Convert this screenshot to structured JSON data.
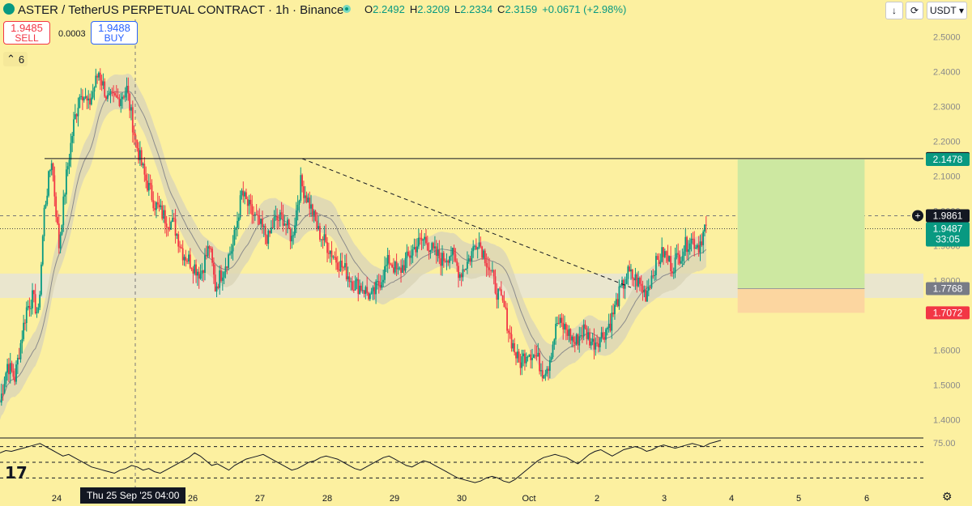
{
  "header": {
    "title": "ASTER / TetherUS PERPETUAL CONTRACT · 1h · Binance",
    "ohlc": [
      {
        "label": "O",
        "value": "2.2492"
      },
      {
        "label": "H",
        "value": "2.3209"
      },
      {
        "label": "L",
        "value": "2.2334"
      },
      {
        "label": "C",
        "value": "2.3159"
      }
    ],
    "change": "+0.0671 (+2.98%)",
    "currency": "USDT",
    "down_arrow": "↓",
    "refresh": "⟳"
  },
  "trade": {
    "sell_price": "1.9485",
    "sell_label": "SELL",
    "buy_price": "1.9488",
    "buy_label": "BUY",
    "spread": "0.0003"
  },
  "indicators_count": "6",
  "crosshair_time": "Thu 25 Sep '25   04:00",
  "colors": {
    "background": "#fcf0a0",
    "up": "#089981",
    "down": "#f23645",
    "target_zone": "#cde8a1",
    "stop_zone": "#fcd6a0",
    "band": "#d9d5b8",
    "sr_zone": "#e6e4d6"
  },
  "icons": {
    "logo": "aster-logo-icon",
    "live": "live-dot-icon",
    "eye": "eye-icon",
    "settings": "gear-icon",
    "tradingview": "tradingview-logo-icon"
  },
  "chart_data": [
    {
      "type": "candlestick",
      "title": "ASTER / TetherUS PERPETUAL CONTRACT · 1h · Binance",
      "x_labels": [
        "24",
        "25",
        "26",
        "27",
        "28",
        "29",
        "30",
        "Oct",
        "2",
        "3",
        "4",
        "5",
        "6"
      ],
      "ylim": [
        1.35,
        2.55
      ],
      "y_ticks": [
        "2.5000",
        "2.4000",
        "2.3000",
        "2.2000",
        "2.1000",
        "2.0000",
        "1.9000",
        "1.8000",
        "1.7000",
        "1.6000",
        "1.5000",
        "1.4000"
      ],
      "anchors": [
        [
          0,
          1.45
        ],
        [
          5,
          1.56
        ],
        [
          10,
          1.52
        ],
        [
          18,
          1.72
        ],
        [
          22,
          1.75
        ],
        [
          26,
          1.7
        ],
        [
          30,
          2.0
        ],
        [
          35,
          2.15
        ],
        [
          40,
          1.9
        ],
        [
          45,
          2.1
        ],
        [
          50,
          2.25
        ],
        [
          55,
          2.35
        ],
        [
          60,
          2.3
        ],
        [
          67,
          2.4
        ],
        [
          73,
          2.32
        ],
        [
          80,
          2.32
        ],
        [
          86,
          2.35
        ],
        [
          92,
          2.2
        ],
        [
          98,
          2.1
        ],
        [
          105,
          2.02
        ],
        [
          112,
          1.98
        ],
        [
          118,
          1.96
        ],
        [
          124,
          1.88
        ],
        [
          130,
          1.85
        ],
        [
          136,
          1.82
        ],
        [
          142,
          1.9
        ],
        [
          146,
          1.78
        ],
        [
          152,
          1.84
        ],
        [
          158,
          1.9
        ],
        [
          164,
          2.05
        ],
        [
          170,
          2.0
        ],
        [
          176,
          1.96
        ],
        [
          182,
          1.92
        ],
        [
          186,
          1.97
        ],
        [
          192,
          1.98
        ],
        [
          198,
          1.92
        ],
        [
          204,
          2.08
        ],
        [
          210,
          2.02
        ],
        [
          216,
          1.94
        ],
        [
          222,
          1.9
        ],
        [
          228,
          1.86
        ],
        [
          234,
          1.83
        ],
        [
          240,
          1.79
        ],
        [
          246,
          1.78
        ],
        [
          252,
          1.75
        ],
        [
          258,
          1.8
        ],
        [
          264,
          1.86
        ],
        [
          270,
          1.82
        ],
        [
          276,
          1.86
        ],
        [
          282,
          1.9
        ],
        [
          288,
          1.92
        ],
        [
          294,
          1.88
        ],
        [
          300,
          1.86
        ],
        [
          306,
          1.88
        ],
        [
          312,
          1.82
        ],
        [
          318,
          1.86
        ],
        [
          324,
          1.92
        ],
        [
          330,
          1.86
        ],
        [
          336,
          1.78
        ],
        [
          342,
          1.72
        ],
        [
          346,
          1.64
        ],
        [
          352,
          1.56
        ],
        [
          358,
          1.6
        ],
        [
          364,
          1.58
        ],
        [
          368,
          1.54
        ],
        [
          372,
          1.56
        ],
        [
          378,
          1.68
        ],
        [
          384,
          1.66
        ],
        [
          390,
          1.62
        ],
        [
          396,
          1.66
        ],
        [
          402,
          1.62
        ],
        [
          408,
          1.64
        ],
        [
          414,
          1.68
        ],
        [
          420,
          1.76
        ],
        [
          426,
          1.82
        ],
        [
          432,
          1.8
        ],
        [
          438,
          1.76
        ],
        [
          444,
          1.84
        ],
        [
          450,
          1.88
        ],
        [
          456,
          1.84
        ],
        [
          462,
          1.88
        ],
        [
          468,
          1.92
        ],
        [
          474,
          1.9
        ],
        [
          478,
          1.95
        ]
      ],
      "series": [
        {
          "name": "Moving Average",
          "color": "#9e9e9e"
        },
        {
          "name": "Envelope",
          "color": "#d9d5b8"
        }
      ],
      "levels": {
        "resistance": 2.1502,
        "long_target": 2.1478,
        "last_price": 1.9487,
        "entry": 1.7768,
        "stop": 1.7072,
        "crosshair": 1.9861
      },
      "label_values": {
        "resistance": "2.1502",
        "target": "2.1478",
        "crosshair": "1.9861",
        "last": "1.9487",
        "countdown": "33:05",
        "entry": "1.7768",
        "stop": "1.7072"
      },
      "sr_zone": [
        1.75,
        1.82
      ],
      "trendline": {
        "from": [
          205,
          2.15
        ],
        "to": [
          428,
          1.78
        ]
      },
      "position_tool": {
        "from_index": 485,
        "to_index": 570,
        "target": 2.1478,
        "entry": 1.7768,
        "stop": 1.7072
      }
    },
    {
      "type": "line",
      "name": "RSI",
      "ylim": [
        20,
        80
      ],
      "y_ticks": [
        "75.00"
      ],
      "levels": [
        70,
        50,
        30
      ],
      "values": [
        62,
        65,
        64,
        66,
        68,
        70,
        72,
        74,
        70,
        66,
        62,
        58,
        60,
        56,
        52,
        48,
        44,
        42,
        40,
        38,
        36,
        40,
        42,
        46,
        44,
        40,
        42,
        38,
        36,
        40,
        44,
        48,
        52,
        56,
        62,
        58,
        52,
        46,
        48,
        44,
        40,
        46,
        50,
        54,
        56,
        58,
        60,
        56,
        52,
        48,
        44,
        40,
        42,
        46,
        50,
        52,
        56,
        58,
        56,
        54,
        50,
        46,
        42,
        40,
        44,
        48,
        52,
        56,
        58,
        54,
        50,
        46,
        44,
        48,
        52,
        50,
        46,
        42,
        38,
        34,
        30,
        28,
        26,
        24,
        26,
        30,
        32,
        30,
        26,
        24,
        28,
        34,
        40,
        46,
        52,
        56,
        58,
        60,
        58,
        56,
        52,
        48,
        54,
        60,
        64,
        66,
        62,
        58,
        62,
        66,
        68,
        70,
        68,
        64,
        66,
        70,
        72,
        70,
        68,
        70,
        72,
        74,
        72,
        70,
        74,
        76,
        78
      ]
    }
  ]
}
